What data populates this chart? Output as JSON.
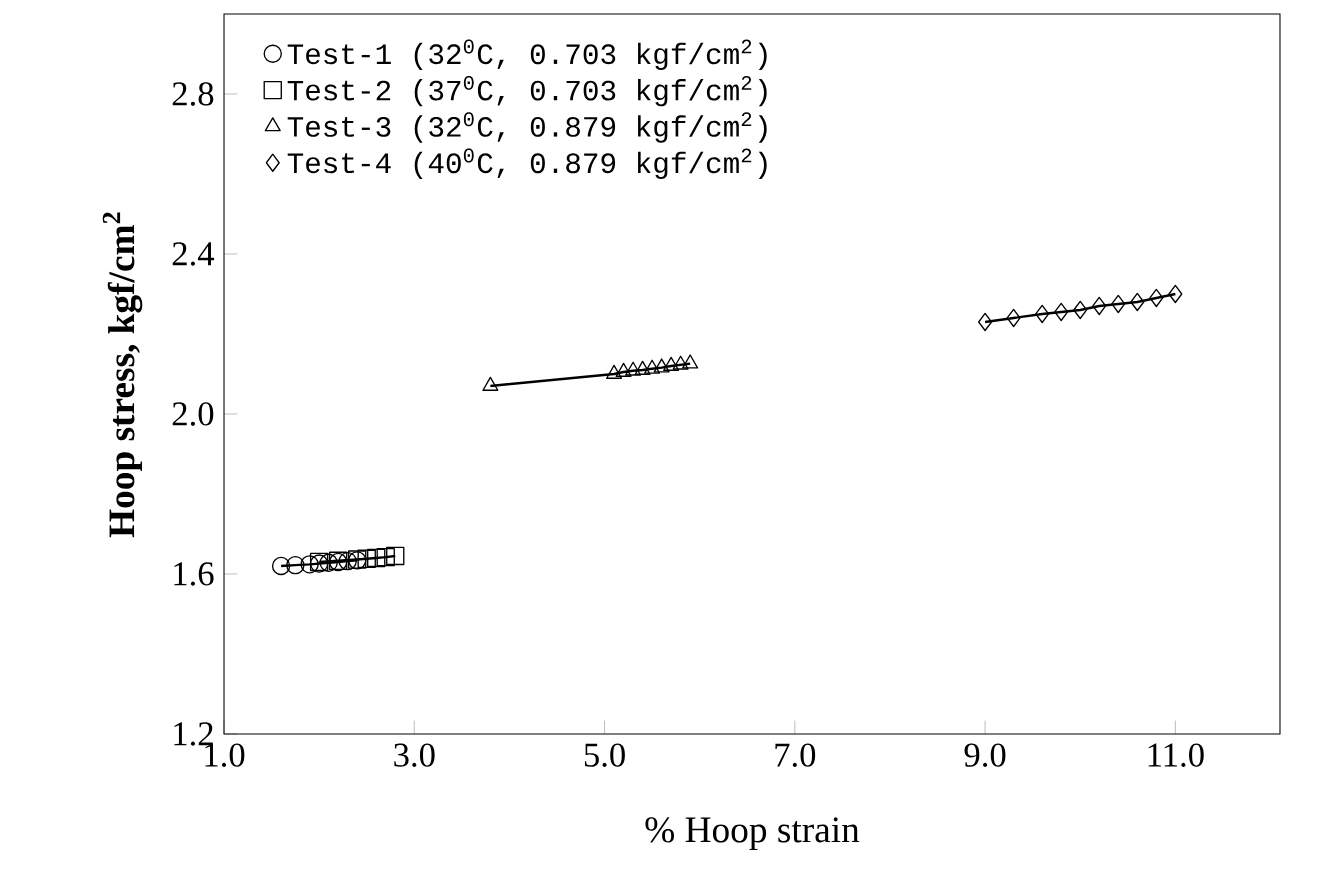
{
  "chart_data": {
    "type": "line",
    "xlabel": "% Hoop strain",
    "ylabel": "**Hoop stress, kgf/cm$^{2}$**",
    "xlim": [
      1.0,
      12.1
    ],
    "ylim": [
      1.2,
      3.0
    ],
    "xticks": [
      {
        "value": 1.0,
        "label": "1.0"
      },
      {
        "value": 3.0,
        "label": "3.0"
      },
      {
        "value": 5.0,
        "label": "5.0"
      },
      {
        "value": 7.0,
        "label": "7.0"
      },
      {
        "value": 9.0,
        "label": "9.0"
      },
      {
        "value": 11.0,
        "label": "11.0"
      }
    ],
    "yticks": [
      {
        "value": 1.2,
        "label": "1.2"
      },
      {
        "value": 1.6,
        "label": "1.6"
      },
      {
        "value": 2.0,
        "label": "2.0"
      },
      {
        "value": 2.4,
        "label": "2.4"
      },
      {
        "value": 2.8,
        "label": "2.8"
      }
    ],
    "legend": "top left",
    "grid": false,
    "line_style": "solid",
    "series": [
      {
        "name": "Test-1 (32$^{0}$C, 0.703 kgf/cm$^{2}$)",
        "color": "#000000",
        "marker": "circle",
        "x": [
          1.6,
          1.75,
          1.9,
          2.0,
          2.1,
          2.2,
          2.3,
          2.4
        ],
        "values": [
          1.62,
          1.622,
          1.624,
          1.626,
          1.628,
          1.63,
          1.632,
          1.634
        ]
      },
      {
        "name": "Test-2 (37$^{0}$C, 0.703 kgf/cm$^{2}$)",
        "color": "#000000",
        "marker": "square",
        "x": [
          2.0,
          2.2,
          2.4,
          2.5,
          2.6,
          2.7,
          2.8
        ],
        "values": [
          1.63,
          1.633,
          1.636,
          1.638,
          1.64,
          1.642,
          1.645
        ]
      },
      {
        "name": "Test-3 (32$^{0}$C, 0.879 kgf/cm$^{2}$)",
        "color": "#000000",
        "marker": "triangle",
        "x": [
          3.8,
          5.1,
          5.2,
          5.3,
          5.4,
          5.5,
          5.6,
          5.7,
          5.8,
          5.9
        ],
        "values": [
          2.07,
          2.1,
          2.105,
          2.108,
          2.11,
          2.113,
          2.116,
          2.12,
          2.123,
          2.126
        ]
      },
      {
        "name": "Test-4 (40$^{0}$C, 0.879 kgf/cm$^{2}$)",
        "color": "#000000",
        "marker": "diamond",
        "x": [
          9.0,
          9.3,
          9.6,
          9.8,
          10.0,
          10.2,
          10.4,
          10.6,
          10.8,
          11.0
        ],
        "values": [
          2.23,
          2.24,
          2.25,
          2.255,
          2.26,
          2.27,
          2.275,
          2.28,
          2.29,
          2.3
        ]
      }
    ]
  }
}
